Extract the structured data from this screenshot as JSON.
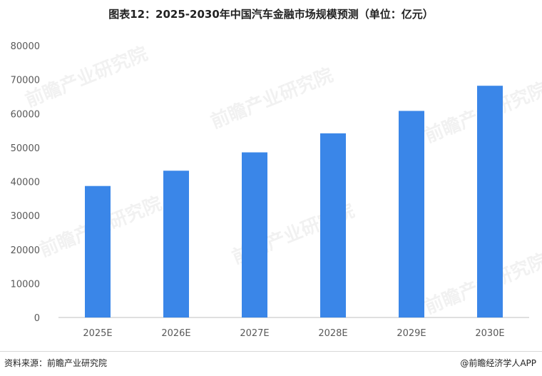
{
  "header": {
    "title": "图表12：2025-2030年中国汽车金融市场规模预测（单位：亿元）"
  },
  "footer": {
    "source": "资料来源：前瞻产业研究院",
    "credit": "@前瞻经济学人APP"
  },
  "watermark": {
    "text": "前瞻产业研究院"
  },
  "colors": {
    "bar": "#3a86e8",
    "axis": "#bfbfbf"
  },
  "chart_data": {
    "type": "bar",
    "title": "图表12：2025-2030年中国汽车金融市场规模预测（单位：亿元）",
    "xlabel": "",
    "ylabel": "",
    "categories": [
      "2025E",
      "2026E",
      "2027E",
      "2028E",
      "2029E",
      "2030E"
    ],
    "values": [
      38700,
      43200,
      48600,
      54200,
      60800,
      68200
    ],
    "ylim": [
      0,
      80000
    ],
    "yticks": [
      0,
      10000,
      20000,
      30000,
      40000,
      50000,
      60000,
      70000,
      80000
    ],
    "grid": false,
    "legend": "none"
  }
}
